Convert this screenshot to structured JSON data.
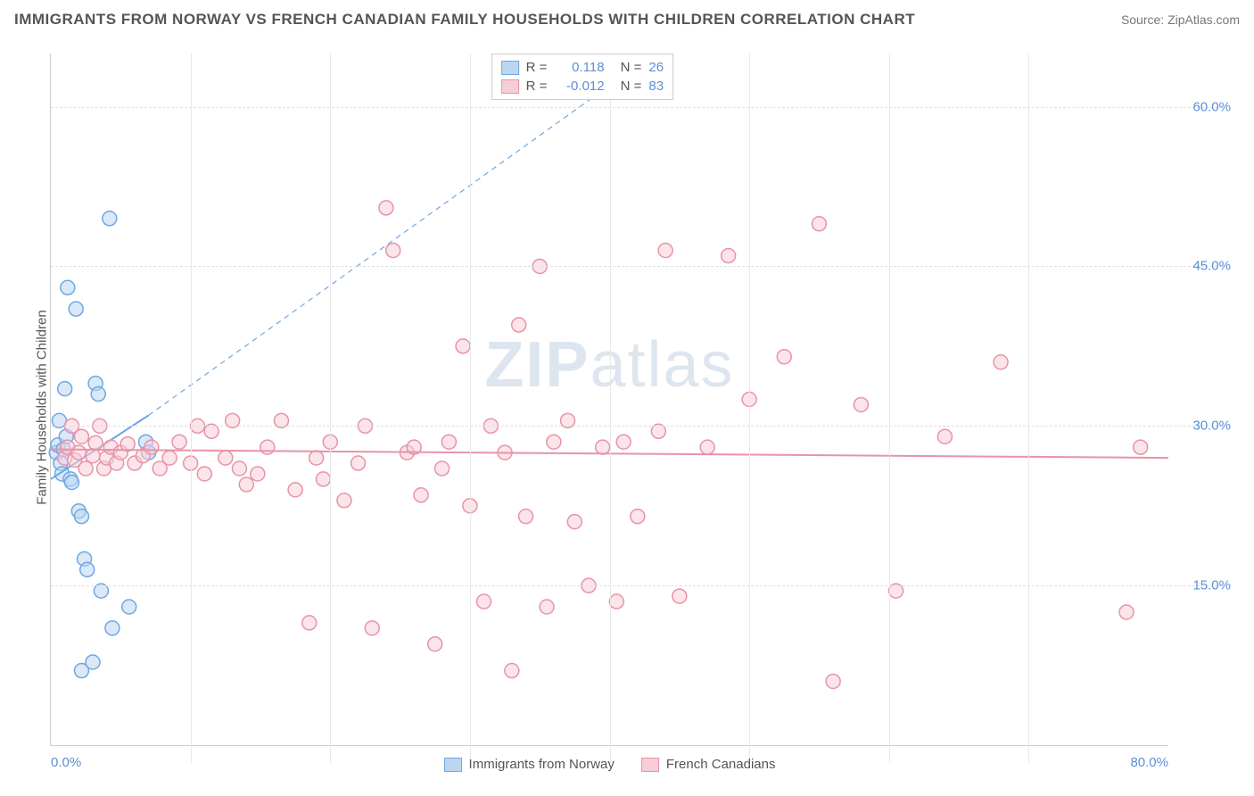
{
  "title": "IMMIGRANTS FROM NORWAY VS FRENCH CANADIAN FAMILY HOUSEHOLDS WITH CHILDREN CORRELATION CHART",
  "source": "Source: ZipAtlas.com",
  "watermark_a": "ZIP",
  "watermark_b": "atlas",
  "y_axis_label": "Family Households with Children",
  "chart": {
    "type": "scatter",
    "background_color": "#ffffff",
    "grid_color": "#e0e0e0",
    "axis_color": "#cccccc",
    "tick_label_color": "#5b8fd6",
    "xlim": [
      0,
      80
    ],
    "ylim": [
      0,
      65
    ],
    "x_ticks": [
      0,
      80
    ],
    "x_tick_labels": [
      "0.0%",
      "80.0%"
    ],
    "y_ticks": [
      15,
      30,
      45,
      60
    ],
    "y_tick_labels": [
      "15.0%",
      "30.0%",
      "45.0%",
      "60.0%"
    ],
    "x_grid_positions": [
      10,
      20,
      30,
      40,
      50,
      60,
      70
    ],
    "marker_radius": 8,
    "marker_stroke_width": 1.5,
    "marker_fill_opacity": 0.25
  },
  "series": [
    {
      "id": "norway",
      "label": "Immigrants from Norway",
      "color": "#6fa8e0",
      "fill": "#bcd6f2",
      "R_label": "R =",
      "R": "0.118",
      "N_label": "N =",
      "N": "26",
      "trend": {
        "x1": 0,
        "y1": 25,
        "x2": 7,
        "y2": 31,
        "dash_x2": 40,
        "dash_y2": 62,
        "stroke_width": 2
      },
      "points": [
        [
          0.4,
          27.5
        ],
        [
          0.5,
          28.2
        ],
        [
          0.6,
          30.5
        ],
        [
          0.7,
          26.5
        ],
        [
          0.8,
          25.5
        ],
        [
          0.9,
          27.8
        ],
        [
          1.0,
          33.5
        ],
        [
          1.1,
          29.0
        ],
        [
          1.2,
          43.0
        ],
        [
          1.4,
          25.0
        ],
        [
          1.5,
          24.7
        ],
        [
          1.8,
          41.0
        ],
        [
          2.0,
          22.0
        ],
        [
          2.2,
          21.5
        ],
        [
          2.4,
          17.5
        ],
        [
          2.6,
          16.5
        ],
        [
          2.2,
          7.0
        ],
        [
          3.0,
          7.8
        ],
        [
          3.2,
          34.0
        ],
        [
          3.4,
          33.0
        ],
        [
          3.6,
          14.5
        ],
        [
          4.2,
          49.5
        ],
        [
          4.4,
          11.0
        ],
        [
          5.6,
          13.0
        ],
        [
          6.8,
          28.5
        ],
        [
          7.0,
          27.5
        ]
      ]
    },
    {
      "id": "french",
      "label": "French Canadians",
      "color": "#e893a8",
      "fill": "#f7cdd8",
      "R_label": "R =",
      "R": "-0.012",
      "N_label": "N =",
      "N": "83",
      "trend": {
        "x1": 0,
        "y1": 27.8,
        "x2": 80,
        "y2": 27.0,
        "stroke_width": 2
      },
      "points": [
        [
          1.0,
          27.0
        ],
        [
          1.2,
          28.0
        ],
        [
          1.5,
          30.0
        ],
        [
          1.7,
          26.8
        ],
        [
          2.0,
          27.5
        ],
        [
          2.2,
          29.0
        ],
        [
          2.5,
          26.0
        ],
        [
          3.0,
          27.2
        ],
        [
          3.2,
          28.4
        ],
        [
          3.5,
          30.0
        ],
        [
          3.8,
          26.0
        ],
        [
          4.0,
          27.0
        ],
        [
          4.3,
          28.0
        ],
        [
          4.7,
          26.5
        ],
        [
          5.0,
          27.5
        ],
        [
          5.5,
          28.3
        ],
        [
          6.0,
          26.5
        ],
        [
          6.6,
          27.2
        ],
        [
          7.2,
          28.0
        ],
        [
          7.8,
          26.0
        ],
        [
          8.5,
          27.0
        ],
        [
          9.2,
          28.5
        ],
        [
          10.0,
          26.5
        ],
        [
          10.5,
          30.0
        ],
        [
          11.0,
          25.5
        ],
        [
          11.5,
          29.5
        ],
        [
          12.5,
          27.0
        ],
        [
          13.0,
          30.5
        ],
        [
          13.5,
          26.0
        ],
        [
          14.0,
          24.5
        ],
        [
          14.8,
          25.5
        ],
        [
          15.5,
          28.0
        ],
        [
          16.5,
          30.5
        ],
        [
          17.5,
          24.0
        ],
        [
          18.5,
          11.5
        ],
        [
          19.0,
          27.0
        ],
        [
          19.5,
          25.0
        ],
        [
          20.0,
          28.5
        ],
        [
          21.0,
          23.0
        ],
        [
          22.0,
          26.5
        ],
        [
          22.5,
          30.0
        ],
        [
          23.0,
          11.0
        ],
        [
          24.0,
          50.5
        ],
        [
          24.5,
          46.5
        ],
        [
          25.5,
          27.5
        ],
        [
          26.0,
          28.0
        ],
        [
          26.5,
          23.5
        ],
        [
          27.5,
          9.5
        ],
        [
          28.0,
          26.0
        ],
        [
          28.5,
          28.5
        ],
        [
          29.5,
          37.5
        ],
        [
          30.0,
          22.5
        ],
        [
          31.0,
          13.5
        ],
        [
          31.5,
          30.0
        ],
        [
          32.5,
          27.5
        ],
        [
          33.0,
          7.0
        ],
        [
          33.5,
          39.5
        ],
        [
          34.0,
          21.5
        ],
        [
          35.0,
          45.0
        ],
        [
          35.5,
          13.0
        ],
        [
          36.0,
          28.5
        ],
        [
          37.0,
          30.5
        ],
        [
          37.5,
          21.0
        ],
        [
          38.5,
          15.0
        ],
        [
          39.5,
          28.0
        ],
        [
          40.5,
          13.5
        ],
        [
          41.0,
          28.5
        ],
        [
          42.0,
          21.5
        ],
        [
          43.5,
          29.5
        ],
        [
          44.0,
          46.5
        ],
        [
          45.0,
          14.0
        ],
        [
          47.0,
          28.0
        ],
        [
          48.5,
          46.0
        ],
        [
          50.0,
          32.5
        ],
        [
          52.5,
          36.5
        ],
        [
          55.0,
          49.0
        ],
        [
          56.0,
          6.0
        ],
        [
          58.0,
          32.0
        ],
        [
          60.5,
          14.5
        ],
        [
          64.0,
          29.0
        ],
        [
          68.0,
          36.0
        ],
        [
          77.0,
          12.5
        ],
        [
          78.0,
          28.0
        ]
      ]
    }
  ]
}
